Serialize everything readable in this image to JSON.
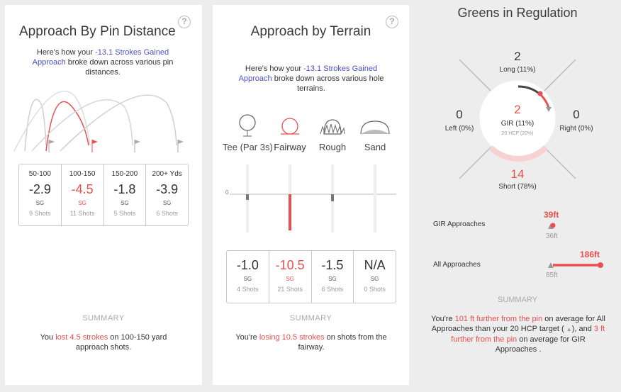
{
  "approach_by_pin": {
    "title": "Approach By Pin Distance",
    "help": "?",
    "intro_pre": "Here's how your",
    "intro_link": "-13.1 Strokes Gained Approach",
    "intro_post": "broke down across various pin distances.",
    "cells": [
      {
        "label": "50-100",
        "value": "-2.9",
        "sg": "SG",
        "shots": "9 Shots",
        "highlight": false
      },
      {
        "label": "100-150",
        "value": "-4.5",
        "sg": "SG",
        "shots": "11 Shots",
        "highlight": true
      },
      {
        "label": "150-200",
        "value": "-1.8",
        "sg": "SG",
        "shots": "5 Shots",
        "highlight": false
      },
      {
        "label": "200+ Yds",
        "value": "-3.9",
        "sg": "SG",
        "shots": "6 Shots",
        "highlight": false
      }
    ],
    "summary_heading": "SUMMARY",
    "summary_pre": "You",
    "summary_red": "lost 4.5 strokes",
    "summary_post": "on 100-150 yard approach shots."
  },
  "approach_by_terrain": {
    "title": "Approach by Terrain",
    "help": "?",
    "intro_pre": "Here's how your",
    "intro_link": "-13.1 Strokes Gained Approach",
    "intro_post": "broke down across various hole terrains.",
    "terrains": [
      "Tee (Par 3s)",
      "Fairway",
      "Rough",
      "Sand"
    ],
    "zero_label": "0",
    "cells": [
      {
        "value": "-1.0",
        "sg": "SG",
        "shots": "4 Shots",
        "highlight": false
      },
      {
        "value": "-10.5",
        "sg": "SG",
        "shots": "21 Shots",
        "highlight": true
      },
      {
        "value": "-1.5",
        "sg": "SG",
        "shots": "6 Shots",
        "highlight": false
      },
      {
        "value": "N/A",
        "sg": "SG",
        "shots": "0 Shots",
        "highlight": false
      }
    ],
    "summary_heading": "SUMMARY",
    "summary_pre": "You're",
    "summary_red": "losing 10.5 strokes",
    "summary_post": "on shots from the fairway."
  },
  "greens_in_regulation": {
    "title": "Greens in Regulation",
    "long_value": "2",
    "long_label": "Long (11%)",
    "left_value": "0",
    "left_label": "Left (0%)",
    "right_value": "0",
    "right_label": "Right (0%)",
    "short_value": "14",
    "short_label": "Short (78%)",
    "center_value": "2",
    "center_label": "GIR (11%)",
    "center_sub": "20 HCP (20%)",
    "gir_approaches_label": "GIR Approaches",
    "gir_approaches_value": "39ft",
    "gir_approaches_target": "36ft",
    "all_approaches_label": "All Approaches",
    "all_approaches_value": "186ft",
    "all_approaches_target": "85ft",
    "summary_heading": "SUMMARY",
    "summary_1": "You're",
    "summary_red1": "101 ft further from the pin",
    "summary_2": "on average for All Approaches than your 20 HCP target (",
    "summary_3": "), and",
    "summary_red2": "3 ft further from the pin",
    "summary_4": "on average for GIR Approaches ."
  },
  "colors": {
    "accent_red": "#ea4f4f",
    "link_blue": "#4a4fc4",
    "gray": "#999999"
  }
}
